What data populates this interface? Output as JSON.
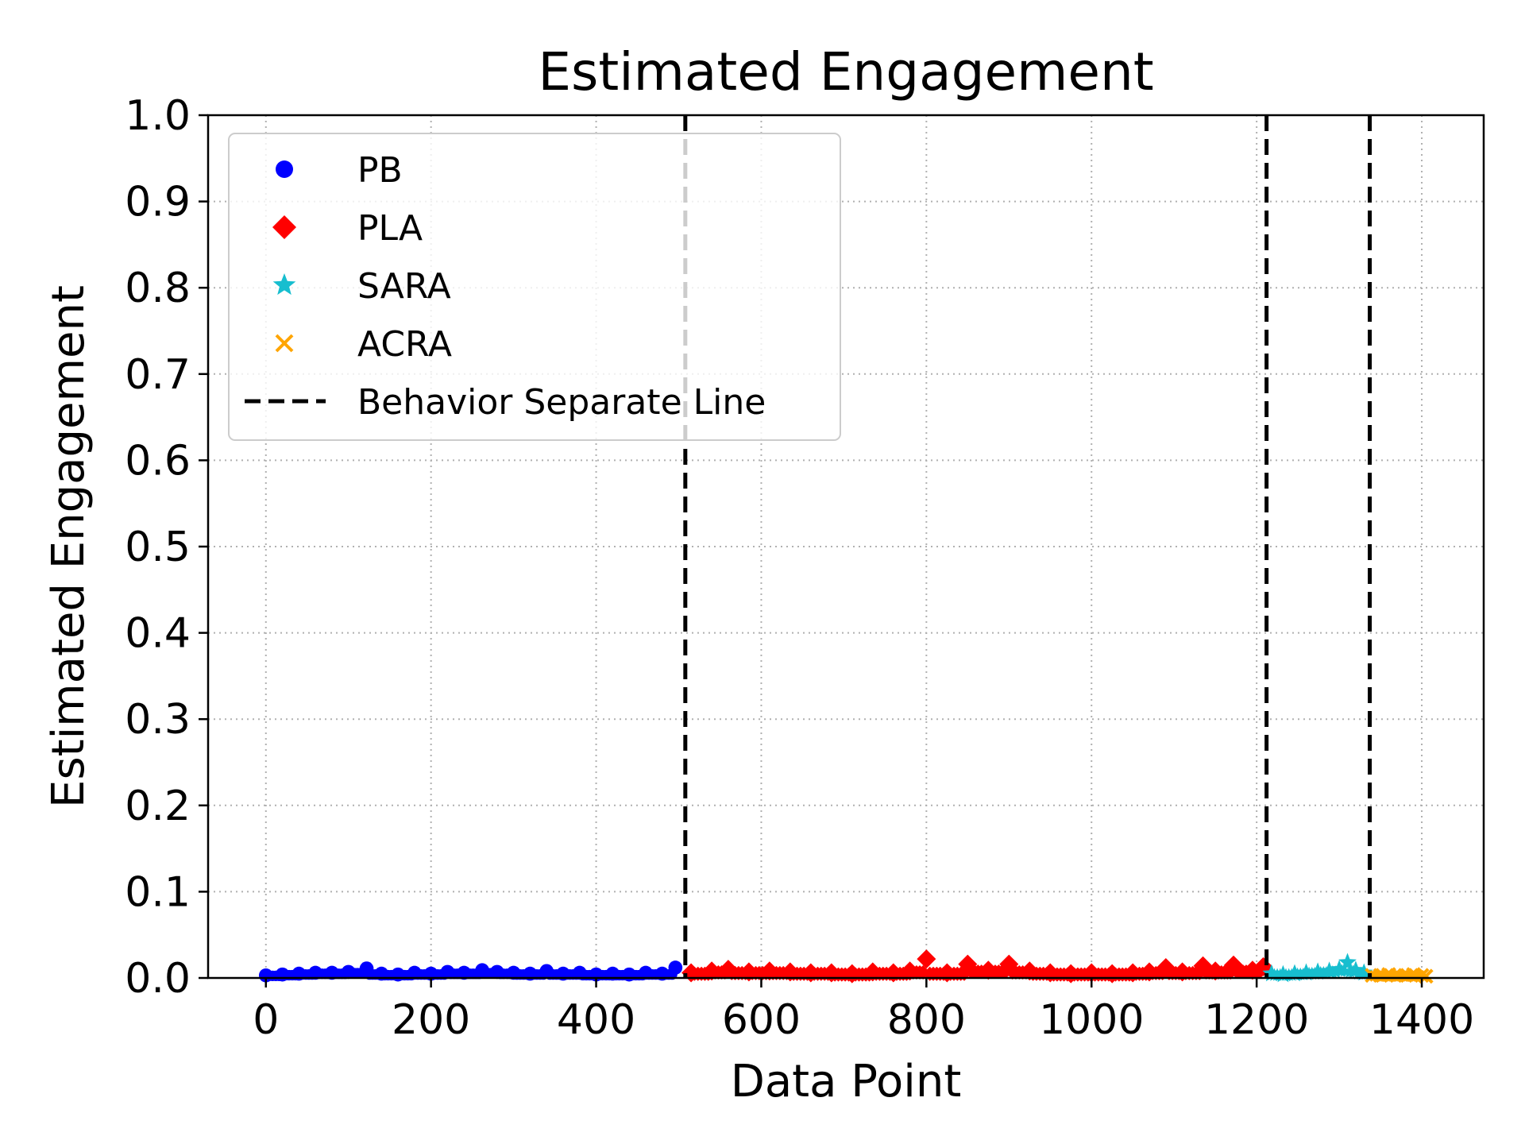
{
  "chart_data": {
    "type": "scatter",
    "title": "Estimated Engagement",
    "xlabel": "Data Point",
    "ylabel": "Estimated Engagement",
    "xlim": [
      -70,
      1475
    ],
    "ylim": [
      0.0,
      1.0
    ],
    "xticks": [
      0,
      200,
      400,
      600,
      800,
      1000,
      1200,
      1400
    ],
    "xtick_labels": [
      "0",
      "200",
      "400",
      "600",
      "800",
      "1000",
      "1200",
      "1400"
    ],
    "yticks": [
      0.0,
      0.1,
      0.2,
      0.3,
      0.4,
      0.5,
      0.6,
      0.7,
      0.8,
      0.9,
      1.0
    ],
    "ytick_labels": [
      "0.0",
      "0.1",
      "0.2",
      "0.3",
      "0.4",
      "0.5",
      "0.6",
      "0.7",
      "0.8",
      "0.9",
      "1.0"
    ],
    "grid": true,
    "legend_position": "top-left",
    "series": [
      {
        "name": "PB",
        "marker": "circle",
        "color": "#0000ff",
        "points": [
          [
            0,
            0.003
          ],
          [
            20,
            0.004
          ],
          [
            40,
            0.005
          ],
          [
            60,
            0.006
          ],
          [
            80,
            0.006
          ],
          [
            100,
            0.007
          ],
          [
            122,
            0.011
          ],
          [
            140,
            0.005
          ],
          [
            160,
            0.004
          ],
          [
            180,
            0.006
          ],
          [
            200,
            0.005
          ],
          [
            220,
            0.007
          ],
          [
            240,
            0.006
          ],
          [
            262,
            0.009
          ],
          [
            280,
            0.007
          ],
          [
            300,
            0.006
          ],
          [
            320,
            0.005
          ],
          [
            340,
            0.008
          ],
          [
            360,
            0.005
          ],
          [
            380,
            0.006
          ],
          [
            400,
            0.004
          ],
          [
            420,
            0.005
          ],
          [
            440,
            0.004
          ],
          [
            460,
            0.006
          ],
          [
            480,
            0.005
          ],
          [
            496,
            0.012
          ]
        ]
      },
      {
        "name": "PLA",
        "marker": "diamond",
        "color": "#ff0000",
        "points": [
          [
            515,
            0.006
          ],
          [
            540,
            0.008
          ],
          [
            560,
            0.01
          ],
          [
            585,
            0.007
          ],
          [
            610,
            0.008
          ],
          [
            635,
            0.007
          ],
          [
            660,
            0.006
          ],
          [
            685,
            0.006
          ],
          [
            710,
            0.005
          ],
          [
            735,
            0.007
          ],
          [
            760,
            0.006
          ],
          [
            780,
            0.008
          ],
          [
            800,
            0.022
          ],
          [
            825,
            0.006
          ],
          [
            850,
            0.016
          ],
          [
            875,
            0.009
          ],
          [
            900,
            0.016
          ],
          [
            925,
            0.008
          ],
          [
            950,
            0.006
          ],
          [
            975,
            0.005
          ],
          [
            1000,
            0.006
          ],
          [
            1025,
            0.005
          ],
          [
            1050,
            0.006
          ],
          [
            1070,
            0.007
          ],
          [
            1090,
            0.012
          ],
          [
            1110,
            0.007
          ],
          [
            1135,
            0.014
          ],
          [
            1150,
            0.008
          ],
          [
            1172,
            0.015
          ],
          [
            1195,
            0.009
          ],
          [
            1208,
            0.013
          ]
        ]
      },
      {
        "name": "SARA",
        "marker": "star",
        "color": "#17becf",
        "points": [
          [
            1218,
            0.005
          ],
          [
            1232,
            0.004
          ],
          [
            1246,
            0.005
          ],
          [
            1260,
            0.006
          ],
          [
            1274,
            0.007
          ],
          [
            1288,
            0.008
          ],
          [
            1300,
            0.01
          ],
          [
            1310,
            0.018
          ],
          [
            1320,
            0.009
          ],
          [
            1330,
            0.006
          ]
        ]
      },
      {
        "name": "ACRA",
        "marker": "x",
        "color": "#ffa500",
        "points": [
          [
            1340,
            0.003
          ],
          [
            1350,
            0.003
          ],
          [
            1360,
            0.004
          ],
          [
            1370,
            0.003
          ],
          [
            1380,
            0.003
          ],
          [
            1390,
            0.004
          ],
          [
            1400,
            0.003
          ],
          [
            1405,
            0.002
          ]
        ]
      }
    ],
    "vertical_lines": {
      "name": "Behavior Separate Line",
      "style": "dashed",
      "color": "#000000",
      "x": [
        508,
        1212,
        1337
      ]
    }
  }
}
